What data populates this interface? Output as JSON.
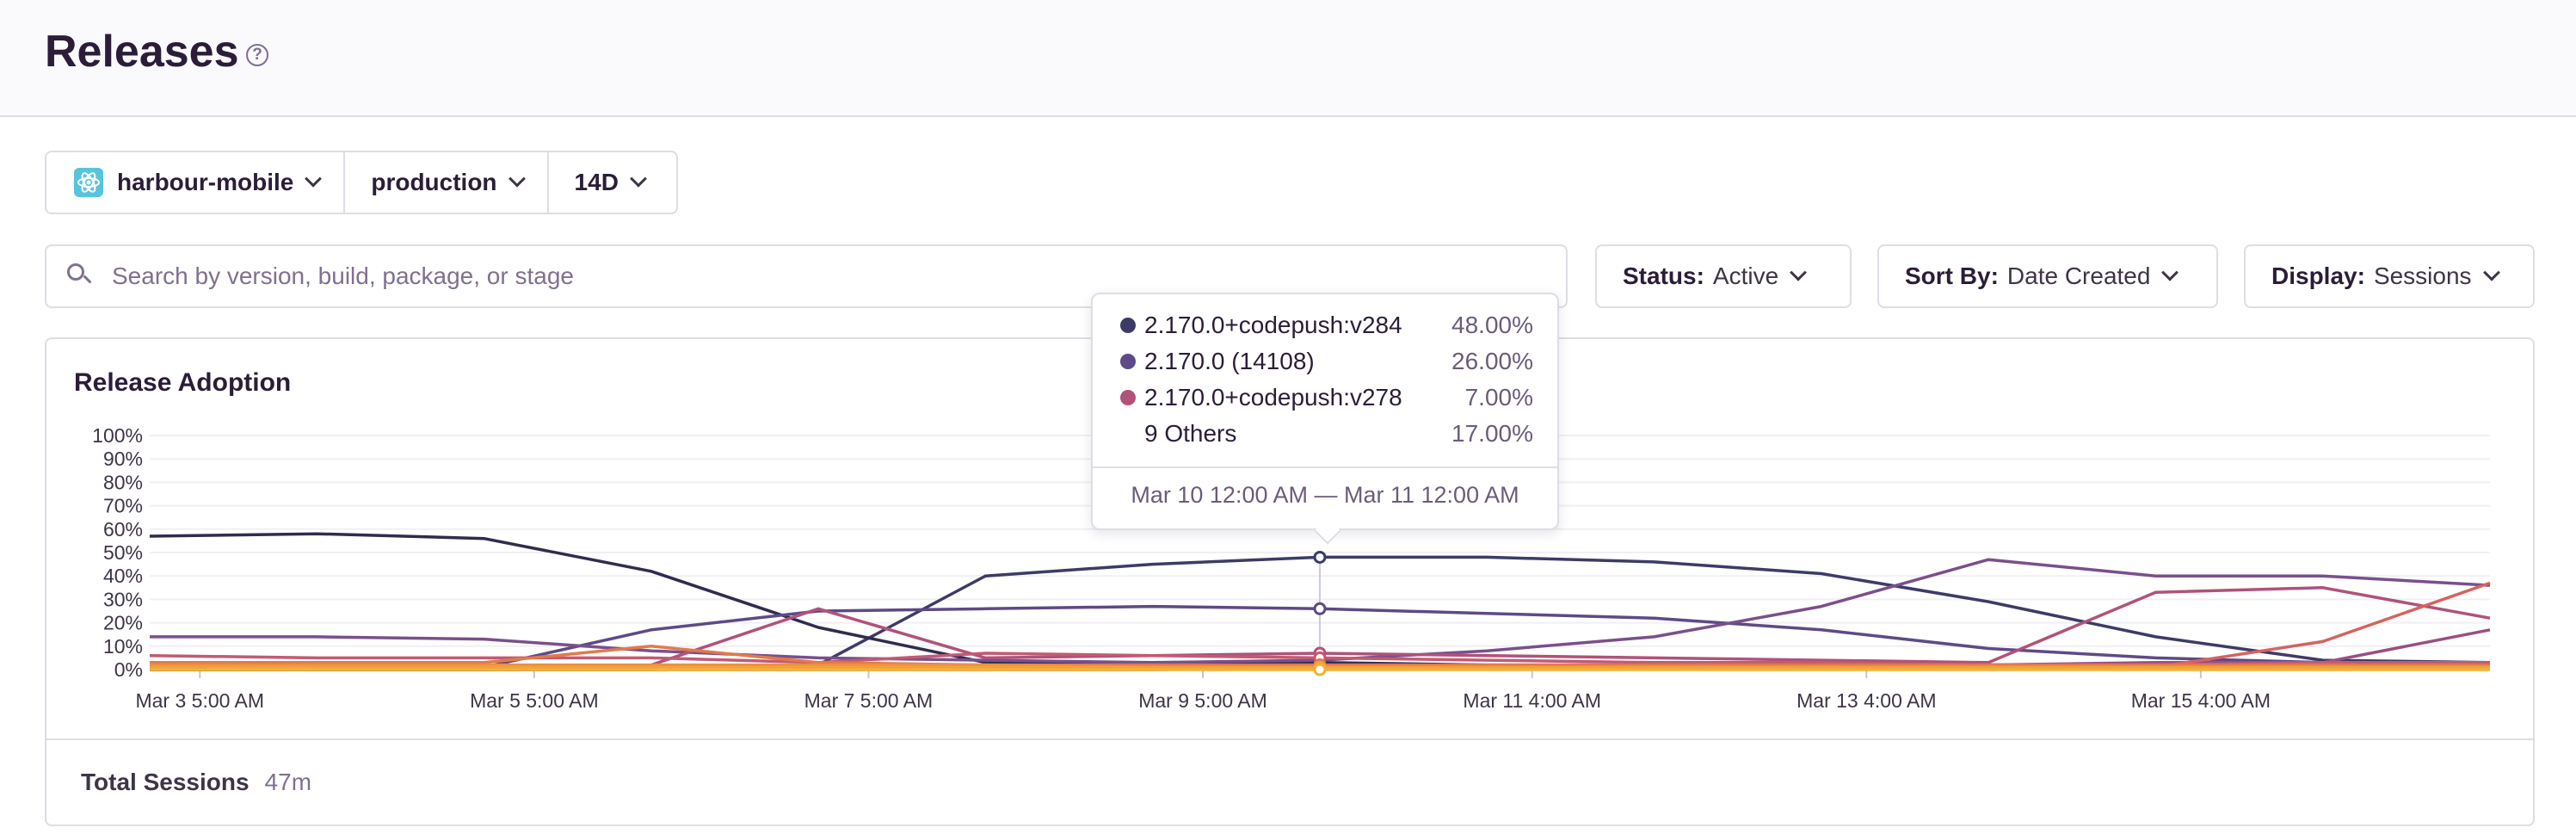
{
  "header": {
    "title": "Releases",
    "help_icon": "question-circle-icon"
  },
  "filters": {
    "project": "harbour-mobile",
    "environment": "production",
    "period": "14D"
  },
  "search": {
    "placeholder": "Search by version, build, package, or stage"
  },
  "status": {
    "label": "Status:",
    "value": "Active"
  },
  "sort": {
    "label": "Sort By:",
    "value": "Date Created"
  },
  "display": {
    "label": "Display:",
    "value": "Sessions"
  },
  "panel": {
    "title": "Release Adoption",
    "total_label": "Total Sessions",
    "total_value": "47m"
  },
  "tooltip": {
    "rows": [
      {
        "name": "2.170.0+codepush:v284",
        "value": "48.00%",
        "color": "#3d3b66"
      },
      {
        "name": "2.170.0 (14108)",
        "value": "26.00%",
        "color": "#5d4a86"
      },
      {
        "name": "2.170.0+codepush:v278",
        "value": "7.00%",
        "color": "#b0527a"
      }
    ],
    "others": {
      "name": "9 Others",
      "value": "17.00%"
    },
    "date_range": "Mar 10 12:00 AM — Mar 11 12:00 AM"
  },
  "chart_data": {
    "type": "line",
    "title": "Release Adoption",
    "ylim": [
      0,
      100
    ],
    "y_ticks": [
      "0%",
      "10%",
      "20%",
      "30%",
      "40%",
      "50%",
      "60%",
      "70%",
      "80%",
      "90%",
      "100%"
    ],
    "x_tick_labels": [
      "Mar 3 5:00 AM",
      "Mar 5 5:00 AM",
      "Mar 7 5:00 AM",
      "Mar 9 5:00 AM",
      "Mar 11 4:00 AM",
      "Mar 13 4:00 AM",
      "Mar 15 4:00 AM"
    ],
    "x_tick_index": [
      0.3,
      2.3,
      4.3,
      6.3,
      8.27,
      10.27,
      12.27
    ],
    "x": [
      "Mar 3",
      "Mar 4",
      "Mar 5",
      "Mar 6",
      "Mar 7",
      "Mar 8",
      "Mar 9",
      "Mar 10",
      "Mar 11",
      "Mar 12",
      "Mar 13",
      "Mar 14",
      "Mar 15",
      "Mar 16",
      "Mar 17"
    ],
    "highlight_index": 7,
    "grid": true,
    "series": [
      {
        "color": "#3d3b66",
        "values": [
          0,
          0,
          0,
          0,
          2,
          40,
          45,
          48,
          48,
          46,
          41,
          29,
          14,
          4,
          3
        ]
      },
      {
        "color": "#2f2c4e",
        "values": [
          57,
          58,
          56,
          42,
          18,
          3,
          3,
          3,
          2,
          2,
          2,
          2,
          2,
          2,
          2
        ]
      },
      {
        "color": "#5d4a86",
        "values": [
          0,
          0,
          1,
          17,
          25,
          26,
          27,
          26,
          24,
          22,
          17,
          9,
          5,
          3,
          2
        ]
      },
      {
        "color": "#7a4f8c",
        "values": [
          14,
          14,
          13,
          8,
          5,
          4,
          3,
          4,
          8,
          14,
          27,
          47,
          40,
          40,
          36
        ]
      },
      {
        "color": "#9a4f83",
        "values": [
          1,
          1,
          1,
          1,
          1,
          1,
          1,
          1,
          1,
          1,
          1,
          2,
          3,
          3,
          17
        ]
      },
      {
        "color": "#b0527a",
        "values": [
          1,
          1,
          1,
          2,
          26,
          5,
          6,
          7,
          6,
          5,
          4,
          3,
          33,
          35,
          22
        ]
      },
      {
        "color": "#c25a73",
        "values": [
          6,
          5,
          5,
          5,
          3,
          7,
          6,
          5,
          4,
          3,
          3,
          2,
          2,
          3,
          3
        ]
      },
      {
        "color": "#d6635e",
        "values": [
          0,
          0,
          0,
          0,
          0,
          0,
          0,
          1,
          1,
          1,
          1,
          1,
          1,
          12,
          37
        ]
      },
      {
        "color": "#e27a4a",
        "values": [
          3,
          3,
          3,
          10,
          3,
          2,
          2,
          2,
          2,
          2,
          2,
          2,
          2,
          2,
          2
        ]
      },
      {
        "color": "#ec9140",
        "values": [
          2,
          2,
          2,
          2,
          2,
          2,
          1,
          1,
          1,
          1,
          1,
          1,
          1,
          1,
          1
        ]
      },
      {
        "color": "#f1a13c",
        "values": [
          1,
          1,
          1,
          1,
          1,
          1,
          1,
          1,
          1,
          1,
          1,
          1,
          1,
          1,
          1
        ]
      },
      {
        "color": "#f4b03a",
        "values": [
          0,
          0,
          0,
          0,
          0,
          0,
          0,
          0,
          0,
          0,
          0,
          0,
          0,
          0,
          0
        ]
      }
    ]
  }
}
